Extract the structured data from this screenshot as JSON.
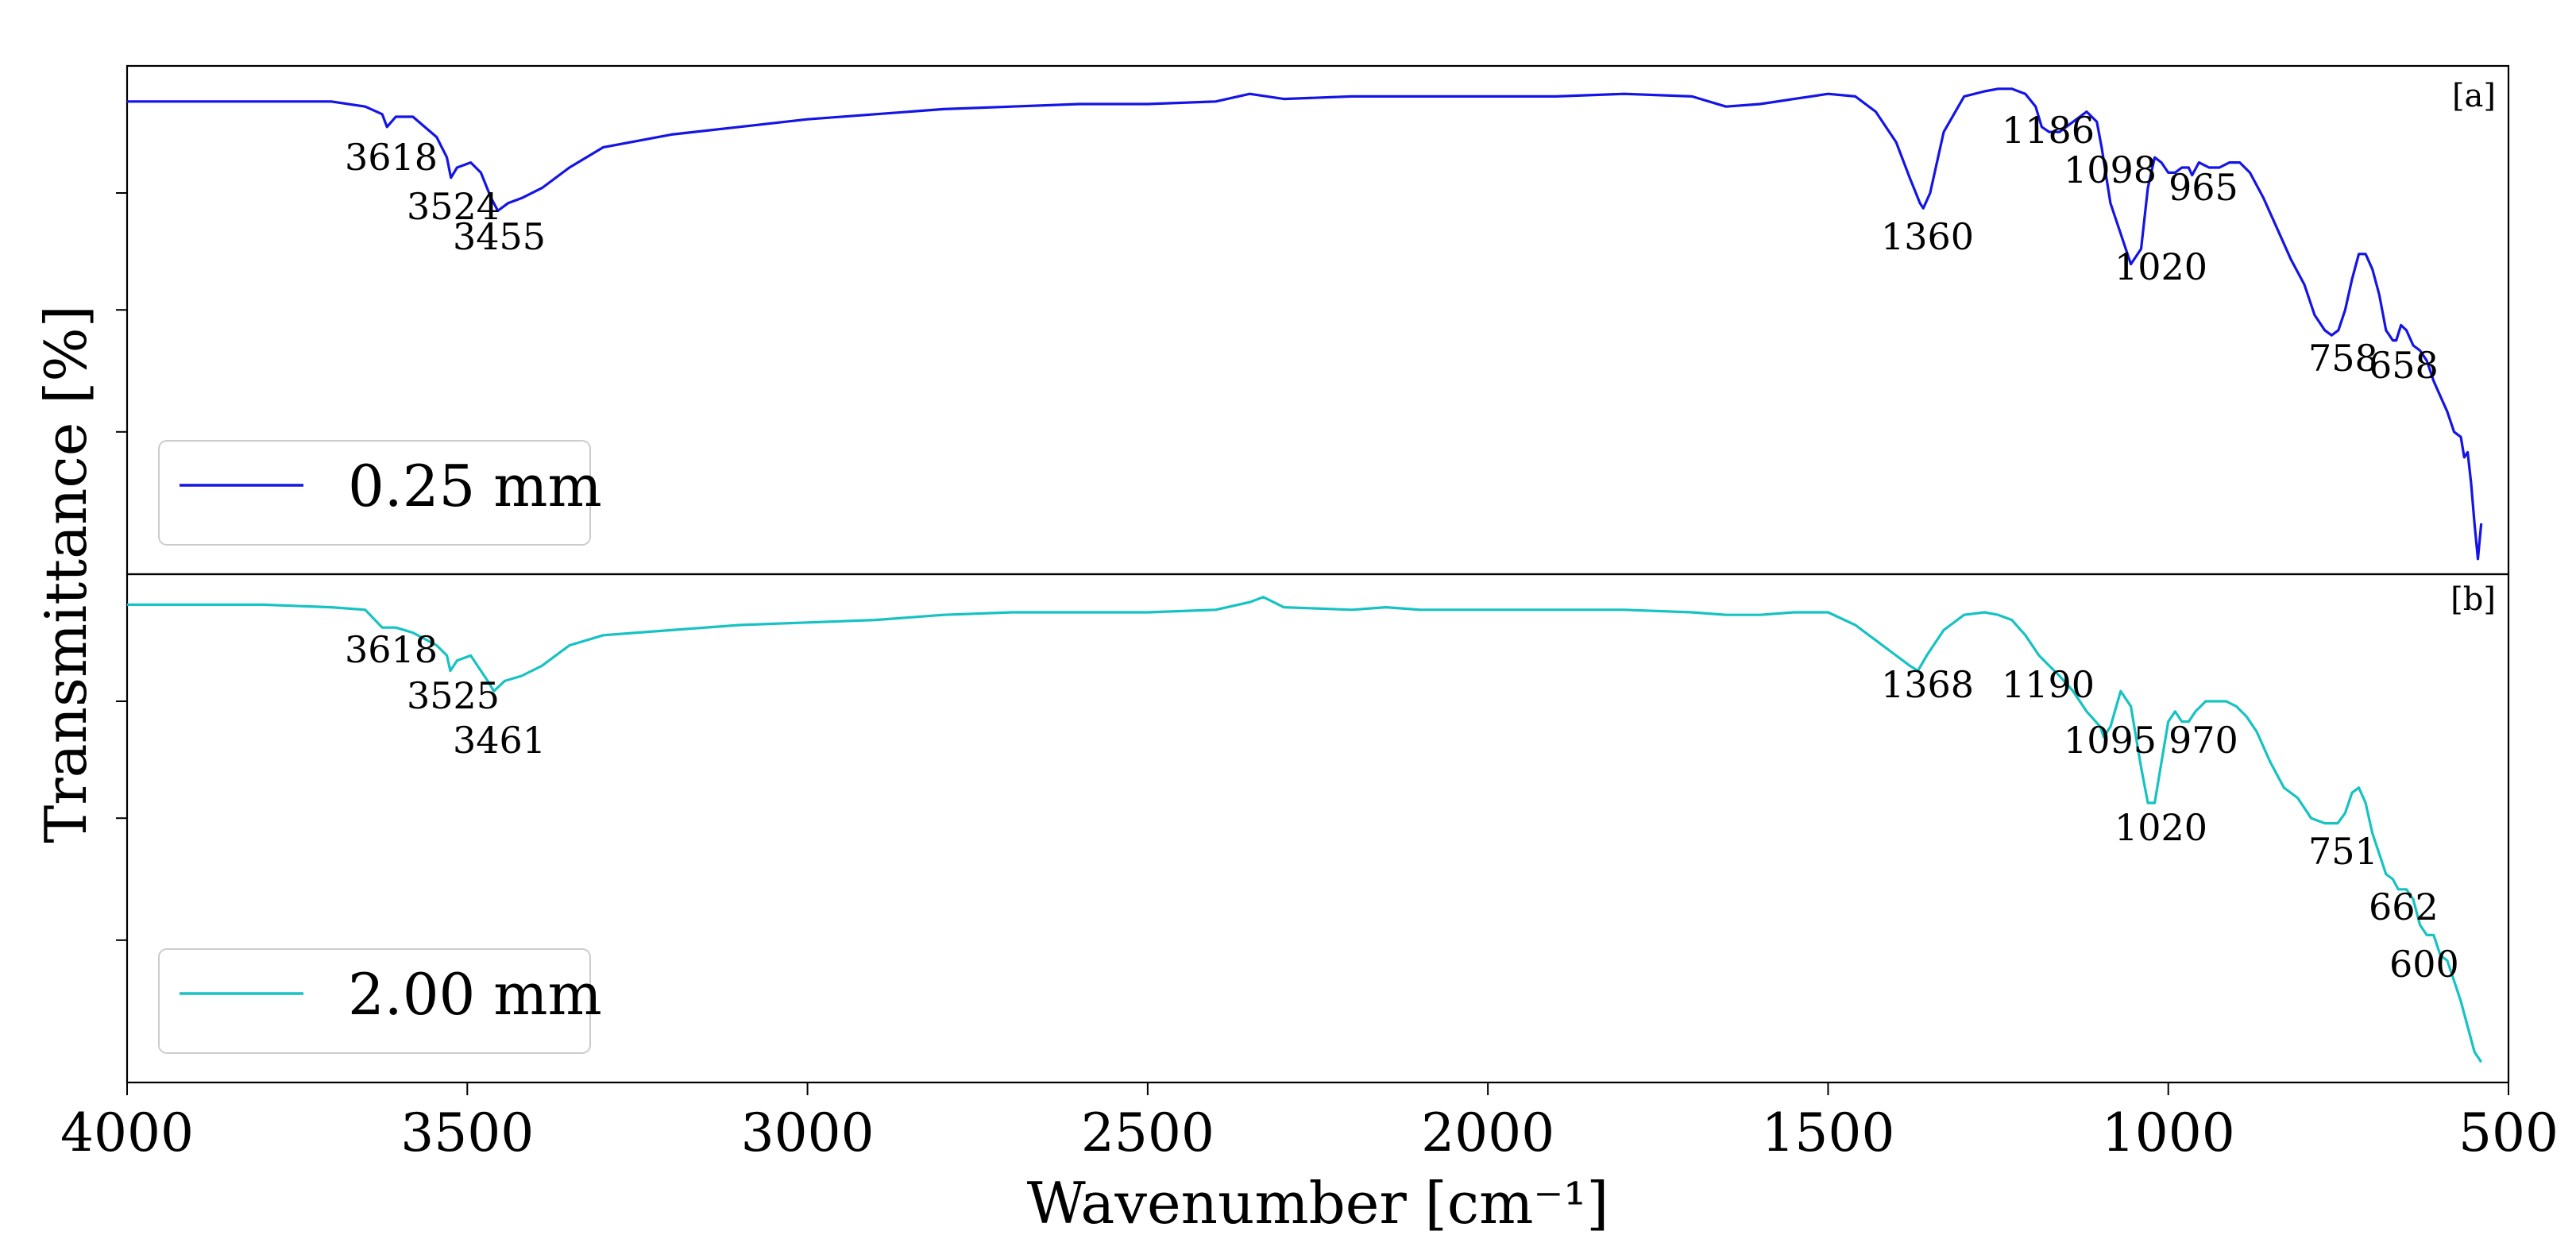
{
  "chart_data": {
    "type": "line",
    "xlabel": "Wavenumber [cm⁻¹]",
    "ylabel": "Transmittance [%]",
    "xlim": [
      4000,
      500
    ],
    "x_inverted": true,
    "ylim": [
      0,
      1
    ],
    "xticks": [
      4000,
      3500,
      3000,
      2500,
      2000,
      1500,
      1000,
      500
    ],
    "xtick_labels": [
      "4000",
      "3500",
      "3000",
      "2500",
      "2000",
      "1500",
      "1000",
      "500"
    ],
    "yticks": [
      0.28,
      0.52,
      0.75
    ],
    "y_tick_labels_shown": false,
    "grid": false,
    "panels": [
      {
        "tag": "[a]",
        "legend": "0.25 mm",
        "legend_location": "lower-left",
        "color": "#1414e6",
        "series_name": "0.25 mm",
        "x": [
          4000,
          3900,
          3800,
          3700,
          3650,
          3625,
          3618,
          3605,
          3580,
          3545,
          3530,
          3524,
          3515,
          3495,
          3480,
          3465,
          3455,
          3440,
          3420,
          3390,
          3350,
          3300,
          3200,
          3100,
          3000,
          2900,
          2800,
          2700,
          2600,
          2500,
          2400,
          2350,
          2300,
          2200,
          2100,
          2000,
          1900,
          1800,
          1700,
          1650,
          1600,
          1550,
          1500,
          1460,
          1430,
          1400,
          1380,
          1365,
          1360,
          1350,
          1330,
          1300,
          1270,
          1250,
          1230,
          1210,
          1195,
          1186,
          1175,
          1160,
          1140,
          1120,
          1105,
          1098,
          1085,
          1070,
          1055,
          1040,
          1030,
          1020,
          1010,
          1000,
          990,
          980,
          970,
          965,
          955,
          940,
          925,
          910,
          895,
          880,
          860,
          840,
          820,
          800,
          785,
          770,
          760,
          750,
          740,
          730,
          720,
          710,
          700,
          690,
          680,
          670,
          665,
          658,
          650,
          640,
          630,
          620,
          610,
          600,
          590,
          580,
          570,
          565,
          560,
          555,
          550,
          545,
          540
        ],
        "y": [
          0.93,
          0.93,
          0.93,
          0.93,
          0.92,
          0.905,
          0.88,
          0.9,
          0.9,
          0.86,
          0.82,
          0.78,
          0.8,
          0.81,
          0.79,
          0.74,
          0.715,
          0.73,
          0.74,
          0.76,
          0.8,
          0.84,
          0.865,
          0.88,
          0.895,
          0.905,
          0.915,
          0.92,
          0.925,
          0.925,
          0.93,
          0.945,
          0.935,
          0.94,
          0.94,
          0.94,
          0.94,
          0.945,
          0.94,
          0.92,
          0.925,
          0.935,
          0.945,
          0.94,
          0.91,
          0.85,
          0.78,
          0.73,
          0.72,
          0.75,
          0.87,
          0.94,
          0.95,
          0.955,
          0.955,
          0.945,
          0.92,
          0.88,
          0.87,
          0.87,
          0.89,
          0.91,
          0.89,
          0.84,
          0.73,
          0.67,
          0.61,
          0.64,
          0.76,
          0.82,
          0.81,
          0.79,
          0.79,
          0.8,
          0.8,
          0.785,
          0.81,
          0.8,
          0.8,
          0.81,
          0.81,
          0.79,
          0.74,
          0.68,
          0.62,
          0.57,
          0.51,
          0.48,
          0.47,
          0.48,
          0.52,
          0.58,
          0.63,
          0.63,
          0.6,
          0.55,
          0.48,
          0.46,
          0.46,
          0.49,
          0.48,
          0.45,
          0.44,
          0.42,
          0.38,
          0.35,
          0.32,
          0.28,
          0.27,
          0.23,
          0.24,
          0.18,
          0.1,
          0.03,
          0.1
        ],
        "peak_labels": [
          "3618",
          "3524",
          "3455",
          "1360",
          "1186",
          "1098",
          "965",
          "1020",
          "758",
          "658"
        ]
      },
      {
        "tag": "[b]",
        "legend": "2.00 mm",
        "legend_location": "lower-left",
        "color": "#16c2c2",
        "series_name": "2.00 mm",
        "x": [
          4000,
          3900,
          3800,
          3700,
          3650,
          3625,
          3618,
          3605,
          3580,
          3545,
          3530,
          3525,
          3515,
          3495,
          3480,
          3470,
          3461,
          3445,
          3420,
          3390,
          3350,
          3300,
          3200,
          3100,
          3000,
          2900,
          2800,
          2700,
          2600,
          2500,
          2400,
          2350,
          2330,
          2300,
          2200,
          2150,
          2100,
          2000,
          1900,
          1800,
          1700,
          1650,
          1600,
          1550,
          1500,
          1460,
          1430,
          1400,
          1380,
          1368,
          1355,
          1330,
          1300,
          1270,
          1250,
          1230,
          1210,
          1190,
          1175,
          1160,
          1140,
          1120,
          1100,
          1095,
          1085,
          1070,
          1055,
          1040,
          1030,
          1020,
          1010,
          1000,
          990,
          980,
          970,
          960,
          945,
          930,
          915,
          900,
          885,
          870,
          850,
          830,
          810,
          790,
          770,
          751,
          740,
          730,
          720,
          710,
          700,
          690,
          680,
          670,
          662,
          650,
          640,
          630,
          620,
          610,
          600,
          590,
          580,
          570,
          560,
          550,
          545,
          540
        ],
        "y": [
          0.94,
          0.94,
          0.94,
          0.935,
          0.93,
          0.895,
          0.895,
          0.895,
          0.885,
          0.86,
          0.84,
          0.81,
          0.83,
          0.84,
          0.81,
          0.79,
          0.77,
          0.79,
          0.8,
          0.82,
          0.86,
          0.88,
          0.89,
          0.9,
          0.905,
          0.91,
          0.92,
          0.925,
          0.925,
          0.925,
          0.93,
          0.945,
          0.955,
          0.935,
          0.93,
          0.935,
          0.93,
          0.93,
          0.93,
          0.93,
          0.925,
          0.92,
          0.92,
          0.925,
          0.925,
          0.9,
          0.87,
          0.84,
          0.82,
          0.81,
          0.84,
          0.89,
          0.92,
          0.925,
          0.92,
          0.91,
          0.88,
          0.84,
          0.82,
          0.8,
          0.77,
          0.73,
          0.7,
          0.68,
          0.7,
          0.77,
          0.74,
          0.62,
          0.55,
          0.55,
          0.63,
          0.71,
          0.73,
          0.71,
          0.71,
          0.73,
          0.75,
          0.75,
          0.75,
          0.74,
          0.72,
          0.69,
          0.63,
          0.58,
          0.56,
          0.52,
          0.51,
          0.51,
          0.53,
          0.57,
          0.58,
          0.55,
          0.49,
          0.45,
          0.41,
          0.4,
          0.38,
          0.38,
          0.36,
          0.31,
          0.29,
          0.29,
          0.25,
          0.24,
          0.2,
          0.16,
          0.11,
          0.06,
          0.05,
          0.04
        ],
        "peak_labels": [
          "3618",
          "3525",
          "3461",
          "1368",
          "1190",
          "1095",
          "970",
          "1020",
          "751",
          "662",
          "600"
        ]
      }
    ]
  }
}
